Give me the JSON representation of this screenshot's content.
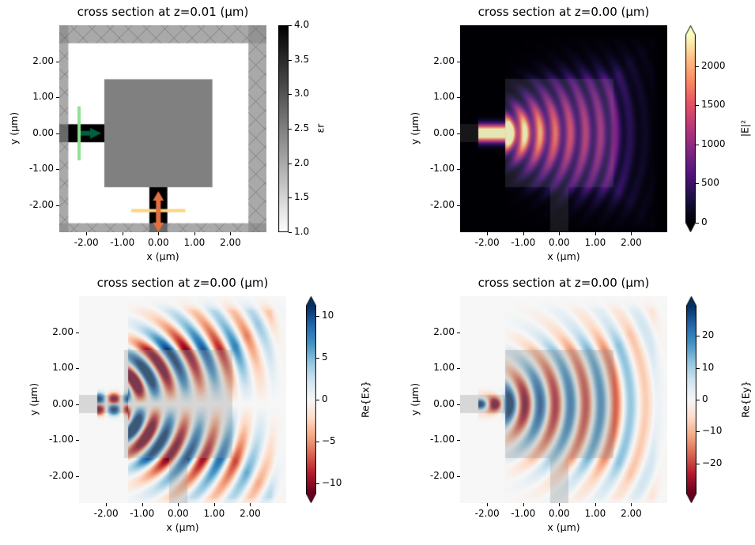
{
  "chart_data": [
    {
      "type": "heatmap",
      "title": "cross section at z=0.01 (µm)",
      "xlabel": "x (µm)",
      "ylabel": "y (µm)",
      "xlim": [
        -2.75,
        3.0
      ],
      "ylim": [
        -2.75,
        3.0
      ],
      "xticks": [
        -2,
        -1,
        0,
        1,
        2
      ],
      "xtick_labels": [
        "-2.00",
        "-1.00",
        "0.00",
        "1.00",
        "2.00"
      ],
      "yticks": [
        2,
        1,
        0,
        -1,
        -2
      ],
      "ytick_labels": [
        "2.00",
        "1.00",
        "0.00",
        "-1.00",
        "-2.00"
      ],
      "quantity": "permittivity",
      "colormap": "gray_r",
      "colorbar": {
        "label": "εr",
        "range": [
          1.0,
          4.0
        ],
        "ticks": [
          1.0,
          1.5,
          2.0,
          2.5,
          3.0,
          3.5,
          4.0
        ],
        "tick_labels": [
          "1.0",
          "1.5",
          "2.0",
          "2.5",
          "3.0",
          "3.5",
          "4.0"
        ],
        "extend": "neither"
      },
      "structures": {
        "box": [
          -1.5,
          1.5,
          -1.5,
          1.5
        ],
        "input_waveguide": [
          -2.75,
          -1.5,
          -0.25,
          0.25
        ],
        "output_waveguide": [
          -0.25,
          0.25,
          -2.75,
          -1.5
        ],
        "box_eps": 2.5,
        "waveguide_eps": 4.0
      },
      "source": {
        "x": -2.2,
        "y_span": [
          -0.75,
          0.75
        ],
        "color": "#90e090",
        "arrow_color": "#006040"
      },
      "monitor": {
        "y": -2.15,
        "x_span": [
          -0.75,
          0.75
        ],
        "color": "#ffd280",
        "arrow_color": "#e07040"
      },
      "pml_color": "#a6a6a6"
    },
    {
      "type": "heatmap",
      "title": "cross section at z=0.00 (µm)",
      "xlabel": "x (µm)",
      "ylabel": "y (µm)",
      "xlim": [
        -2.75,
        3.0
      ],
      "ylim": [
        -2.75,
        3.0
      ],
      "xticks": [
        -2,
        -1,
        0,
        1,
        2
      ],
      "xtick_labels": [
        "-2.00",
        "-1.00",
        "0.00",
        "1.00",
        "2.00"
      ],
      "yticks": [
        2,
        1,
        0,
        -1,
        -2
      ],
      "ytick_labels": [
        "2.00",
        "1.00",
        "0.00",
        "-1.00",
        "-2.00"
      ],
      "quantity": "|E|²",
      "colormap": "magma",
      "colorbar": {
        "label": "|E|²",
        "range": [
          0,
          2400
        ],
        "ticks": [
          0,
          500,
          1000,
          1500,
          2000
        ],
        "tick_labels": [
          "0",
          "500",
          "1000",
          "1500",
          "2000"
        ],
        "extend": "both"
      }
    },
    {
      "type": "heatmap",
      "title": "cross section at z=0.00 (µm)",
      "xlabel": "x (µm)",
      "ylabel": "y (µm)",
      "xlim": [
        -2.75,
        3.0
      ],
      "ylim": [
        -2.75,
        3.0
      ],
      "xticks": [
        -2,
        -1,
        0,
        1,
        2
      ],
      "xtick_labels": [
        "-2.00",
        "-1.00",
        "0.00",
        "1.00",
        "2.00"
      ],
      "yticks": [
        2,
        1,
        0,
        -1,
        -2
      ],
      "ytick_labels": [
        "2.00",
        "1.00",
        "0.00",
        "-1.00",
        "-2.00"
      ],
      "quantity": "Re{Ex}",
      "colormap": "RdBu",
      "colorbar": {
        "label": "Re{Ex}",
        "range": [
          -11.2,
          11.2
        ],
        "ticks": [
          -10,
          -5,
          0,
          5,
          10
        ],
        "tick_labels": [
          "−10",
          "−5",
          "0",
          "5",
          "10"
        ],
        "extend": "both"
      }
    },
    {
      "type": "heatmap",
      "title": "cross section at z=0.00 (µm)",
      "xlabel": "x (µm)",
      "ylabel": "y (µm)",
      "xlim": [
        -2.75,
        3.0
      ],
      "ylim": [
        -2.75,
        3.0
      ],
      "xticks": [
        -2,
        -1,
        0,
        1,
        2
      ],
      "xtick_labels": [
        "-2.00",
        "-1.00",
        "0.00",
        "1.00",
        "2.00"
      ],
      "yticks": [
        2,
        1,
        0,
        -1,
        -2
      ],
      "ytick_labels": [
        "2.00",
        "1.00",
        "0.00",
        "-1.00",
        "-2.00"
      ],
      "quantity": "Re{Ey}",
      "colormap": "RdBu",
      "colorbar": {
        "label": "Re{Ey}",
        "range": [
          -29.5,
          29.5
        ],
        "ticks": [
          -20,
          -10,
          0,
          10,
          20
        ],
        "tick_labels": [
          "−20",
          "−10",
          "0",
          "10",
          "20"
        ],
        "extend": "both"
      }
    }
  ]
}
